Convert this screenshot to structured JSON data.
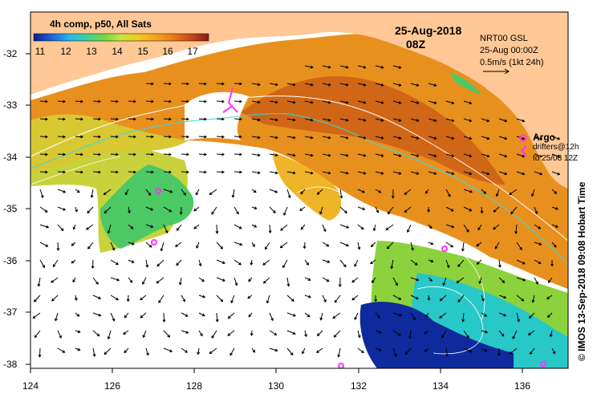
{
  "colorbar": {
    "title": "4h comp, p50, All Sats",
    "ticks": [
      "11",
      "12",
      "13",
      "14",
      "15",
      "16",
      "17"
    ],
    "colors": [
      "#0a1f8c",
      "#1e5fd6",
      "#28b4e8",
      "#3cd2a0",
      "#6fd84a",
      "#c8e63c",
      "#f0c828",
      "#f5a01e",
      "#e8781a",
      "#c8461a",
      "#8c1e14"
    ]
  },
  "date": "25-Aug-2018",
  "time": "08Z",
  "product": "NRT00 GSL",
  "product_time": "25-Aug 00:00Z",
  "vector_scale": "0.5m/s (1kt 24h)",
  "argo_label": "Argo",
  "drifter_line1": "drifters@12h",
  "drifter_line2": "to 25/08 12Z",
  "credit": "© IMOS 13-Sep-2018 09:08 Hobart Time",
  "x_axis_ticks": [
    "124",
    "126",
    "128",
    "130",
    "132",
    "134",
    "136"
  ],
  "y_axis_ticks": [
    "-32",
    "-33",
    "-34",
    "-35",
    "-36",
    "-37",
    "-38"
  ],
  "colors": {
    "land": "#ffc896",
    "argo_marker": "#ff33ff",
    "isobath_cyan": "#33dddd",
    "contour": "#ffffff"
  }
}
